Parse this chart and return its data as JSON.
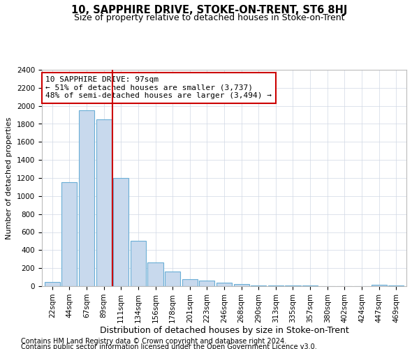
{
  "title": "10, SAPPHIRE DRIVE, STOKE-ON-TRENT, ST6 8HJ",
  "subtitle": "Size of property relative to detached houses in Stoke-on-Trent",
  "xlabel": "Distribution of detached houses by size in Stoke-on-Trent",
  "ylabel": "Number of detached properties",
  "footnote1": "Contains HM Land Registry data © Crown copyright and database right 2024.",
  "footnote2": "Contains public sector information licensed under the Open Government Licence v3.0.",
  "bar_labels": [
    "22sqm",
    "44sqm",
    "67sqm",
    "89sqm",
    "111sqm",
    "134sqm",
    "156sqm",
    "178sqm",
    "201sqm",
    "223sqm",
    "246sqm",
    "268sqm",
    "290sqm",
    "313sqm",
    "335sqm",
    "357sqm",
    "380sqm",
    "402sqm",
    "424sqm",
    "447sqm",
    "469sqm"
  ],
  "bar_values": [
    50,
    1150,
    1950,
    1850,
    1200,
    500,
    260,
    160,
    80,
    65,
    40,
    20,
    10,
    8,
    6,
    4,
    3,
    3,
    3,
    18,
    5
  ],
  "bar_color": "#c8d9ed",
  "bar_edge_color": "#6aaed6",
  "ylim": [
    0,
    2400
  ],
  "yticks": [
    0,
    200,
    400,
    600,
    800,
    1000,
    1200,
    1400,
    1600,
    1800,
    2000,
    2200,
    2400
  ],
  "vline_x": 3.5,
  "vline_color": "#cc0000",
  "annotation_text": "10 SAPPHIRE DRIVE: 97sqm\n← 51% of detached houses are smaller (3,737)\n48% of semi-detached houses are larger (3,494) →",
  "annotation_box_color": "#ffffff",
  "annotation_box_edge": "#cc0000",
  "title_fontsize": 10.5,
  "subtitle_fontsize": 9,
  "xlabel_fontsize": 9,
  "ylabel_fontsize": 8,
  "tick_fontsize": 7.5,
  "footnote_fontsize": 7,
  "annotation_fontsize": 8,
  "background_color": "#ffffff",
  "grid_color": "#d0d8e4"
}
